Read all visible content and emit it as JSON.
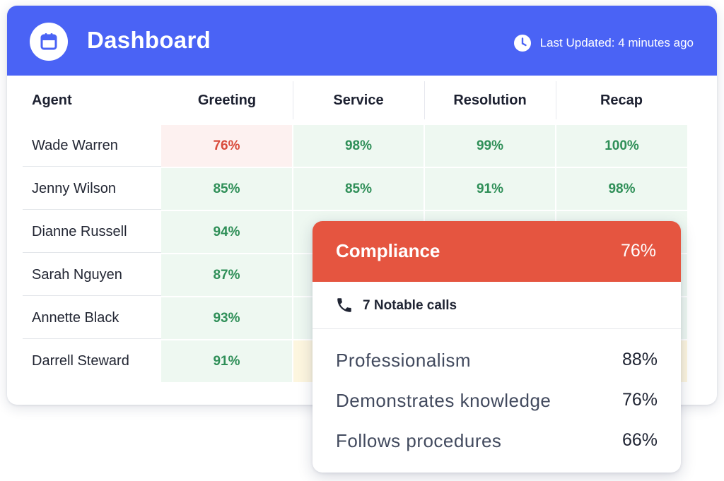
{
  "header": {
    "title": "Dashboard",
    "icon": "calendar-icon",
    "last_updated": "Last Updated: 4 minutes ago",
    "clock_icon": "clock-icon",
    "color": "#4a63f5"
  },
  "table": {
    "columns": [
      "Agent",
      "Greeting",
      "Service",
      "Resolution",
      "Recap"
    ],
    "rows": [
      {
        "agent": "Wade Warren",
        "greeting": "76%",
        "service": "98%",
        "resolution": "99%",
        "recap": "100%"
      },
      {
        "agent": "Jenny Wilson",
        "greeting": "85%",
        "service": "85%",
        "resolution": "91%",
        "recap": "98%"
      },
      {
        "agent": "Dianne Russell",
        "greeting": "94%"
      },
      {
        "agent": "Sarah Nguyen",
        "greeting": "87%"
      },
      {
        "agent": "Annette Black",
        "greeting": "93%"
      },
      {
        "agent": "Darrell Steward",
        "greeting": "91%"
      }
    ],
    "colors": {
      "good_bg": "#eef8f1",
      "good_text": "#2f8f58",
      "bad_bg": "#fdf1f0",
      "bad_text": "#d94b3b",
      "warn_bg": "#fdf6df"
    }
  },
  "popup": {
    "title": "Compliance",
    "score": "76%",
    "header_color": "#e55540",
    "calls_icon": "phone-icon",
    "calls_label": "7 Notable calls",
    "metrics": [
      {
        "name": "Professionalism",
        "value": "88%"
      },
      {
        "name": "Demonstrates knowledge",
        "value": "76%"
      },
      {
        "name": "Follows procedures",
        "value": "66%"
      }
    ]
  }
}
